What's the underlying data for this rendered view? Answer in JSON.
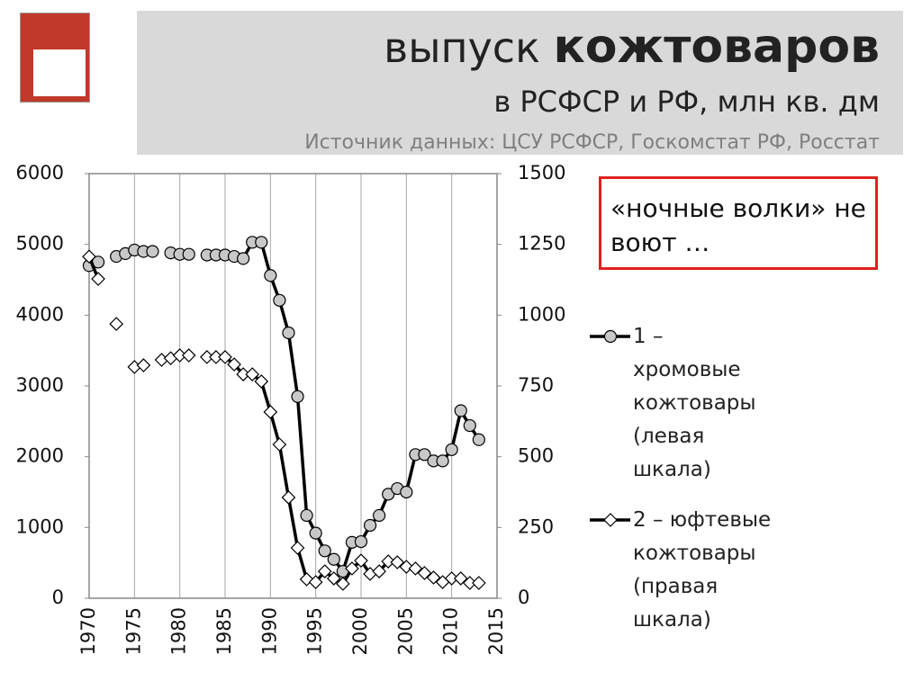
{
  "title": "выпуск",
  "title_emphasis": "кожтоваров",
  "subtitle": "в РСФСР и РФ, млн кв. дм",
  "source": "Источник данных: ЦСУ РСФСР, Госкомстат РФ, Росстат",
  "note": "«ночные волки» не воют …",
  "chart_data": {
    "type": "line",
    "x": [
      1970,
      1971,
      1972,
      1973,
      1974,
      1975,
      1976,
      1977,
      1978,
      1979,
      1980,
      1981,
      1982,
      1983,
      1984,
      1985,
      1986,
      1987,
      1988,
      1989,
      1990,
      1991,
      1992,
      1993,
      1994,
      1995,
      1996,
      1997,
      1998,
      1999,
      2000,
      2001,
      2002,
      2003,
      2004,
      2005,
      2006,
      2007,
      2008,
      2009,
      2010,
      2011,
      2012,
      2013
    ],
    "series": [
      {
        "name": "1 – хромовые кожтовары (левая шкала)",
        "color": "#000000",
        "marker": "circle",
        "axis": "y",
        "values": [
          4700,
          4750,
          null,
          4830,
          4870,
          4920,
          4900,
          4900,
          null,
          4880,
          4860,
          4860,
          null,
          4850,
          4850,
          4850,
          4830,
          4800,
          5030,
          5030,
          4560,
          4210,
          3750,
          2850,
          1170,
          920,
          670,
          550,
          380,
          790,
          800,
          1030,
          1170,
          1470,
          1550,
          1500,
          2030,
          2030,
          1940,
          1940,
          2100,
          2650,
          2440,
          2240
        ]
      },
      {
        "name": "2 – юфтевые кожтовары (правая шкала)",
        "color": "#000000",
        "marker": "diamond",
        "axis": "y2",
        "values": [
          1207,
          1128,
          null,
          969,
          null,
          817,
          823,
          null,
          842,
          848,
          858,
          858,
          null,
          852,
          852,
          852,
          826,
          791,
          791,
          766,
          658,
          543,
          356,
          178,
          67,
          57,
          95,
          70,
          51,
          105,
          133,
          86,
          95,
          130,
          127,
          111,
          105,
          89,
          73,
          57,
          70,
          70,
          54,
          54
        ]
      }
    ],
    "xlim": [
      1970,
      2015
    ],
    "xticks": [
      1970,
      1975,
      1980,
      1985,
      1990,
      1995,
      2000,
      2005,
      2010,
      2015
    ],
    "ylim": [
      0,
      6000
    ],
    "yticks": [
      0,
      1000,
      2000,
      3000,
      4000,
      5000,
      6000
    ],
    "y2lim": [
      0,
      1500
    ],
    "y2ticks": [
      0,
      250,
      500,
      750,
      1000,
      1250,
      1500
    ],
    "grid": "x"
  }
}
